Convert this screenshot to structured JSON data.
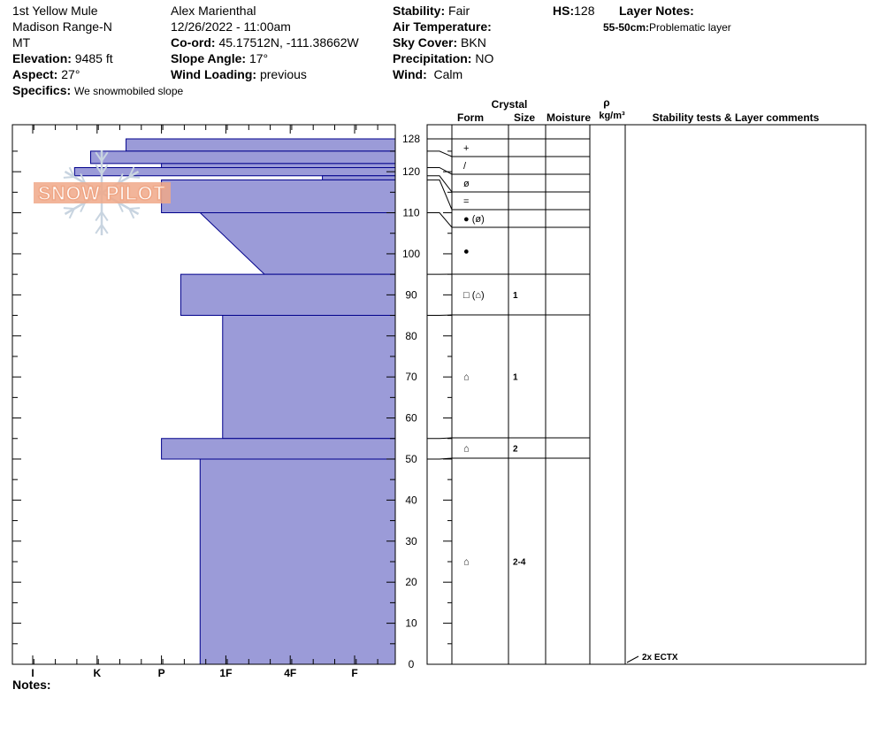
{
  "header": {
    "col1": [
      "1st Yellow Mule",
      "Madison Range-N",
      "MT"
    ],
    "elevation_label": "Elevation:",
    "elevation_value": "9485 ft",
    "aspect_label": "Aspect:",
    "aspect_value": "27°",
    "specifics_label": "Specifics:",
    "specifics_value": "We snowmobiled slope",
    "observer": "Alex Marienthal",
    "datetime": "12/26/2022 - 11:00am",
    "coord_label": "Co-ord:",
    "coord_value": "45.17512N, -111.38662W",
    "slope_label": "Slope Angle:",
    "slope_value": "17°",
    "wind_loading_label": "Wind Loading:",
    "wind_loading_value": "previous",
    "stability_label": "Stability:",
    "stability_value": "Fair",
    "air_temp_label": "Air Temperature:",
    "air_temp_value": "",
    "sky_label": "Sky Cover:",
    "sky_value": "BKN",
    "precip_label": "Precipitation:",
    "precip_value": "NO",
    "wind_label": "Wind:",
    "wind_value": "Calm",
    "hs_label": "HS:",
    "hs_value": "128",
    "layer_notes_label": "Layer Notes:",
    "layer_note_range": "55-50cm:",
    "layer_note_text": "Problematic layer"
  },
  "logo_text": "SNOW PILOT",
  "notes_label": "Notes:",
  "colors": {
    "layer_fill": "#9b9bd8",
    "layer_stroke": "#00008b",
    "logo": "#f0a888",
    "logo_flake": "#c8d4e0"
  },
  "table_headers": {
    "crystal": "Crystal",
    "form": "Form",
    "size": "Size",
    "moisture": "Moisture",
    "rho": "ρ",
    "density_unit": "kg/m³",
    "comments": "Stability tests & Layer comments"
  },
  "chart_data": {
    "type": "snow_profile",
    "hardness_axis": {
      "ticks": [
        "I",
        "K",
        "P",
        "1F",
        "4F",
        "F"
      ]
    },
    "height_axis": {
      "min": 0,
      "max": 128,
      "ticks": [
        0,
        10,
        20,
        30,
        40,
        50,
        60,
        70,
        80,
        90,
        100,
        110,
        120,
        128
      ]
    },
    "hardness_profile": [
      {
        "bottom": 125,
        "top": 128,
        "hardness_pos": 1.45
      },
      {
        "bottom": 122,
        "top": 125,
        "hardness_pos": 0.9
      },
      {
        "bottom": 121,
        "top": 122,
        "hardness_pos": 2.0
      },
      {
        "bottom": 119,
        "top": 121,
        "hardness_pos": 0.65
      },
      {
        "bottom": 118,
        "top": 119,
        "hardness_pos": 4.5
      },
      {
        "bottom": 110,
        "top": 118,
        "hardness_pos": 2.0
      },
      {
        "bottom": 95,
        "top": 110,
        "hardness_pos_bottom": 3.6,
        "hardness_pos_top": 2.6
      },
      {
        "bottom": 85,
        "top": 95,
        "hardness_pos": 2.3
      },
      {
        "bottom": 55,
        "top": 85,
        "hardness_pos": 2.95
      },
      {
        "bottom": 50,
        "top": 55,
        "hardness_pos": 2.0
      },
      {
        "bottom": 0,
        "top": 50,
        "hardness_pos": 2.6
      }
    ],
    "layers": [
      {
        "top": 128,
        "bottom": 125,
        "form": "+",
        "size": ""
      },
      {
        "top": 125,
        "bottom": 121,
        "form": "/",
        "size": ""
      },
      {
        "top": 121,
        "bottom": 119,
        "form": "ø",
        "size": ""
      },
      {
        "top": 119,
        "bottom": 118,
        "form": "=",
        "size": ""
      },
      {
        "top": 118,
        "bottom": 110,
        "form": "● (ø)",
        "size": ""
      },
      {
        "top": 110,
        "bottom": 95,
        "form": "●",
        "size": ""
      },
      {
        "top": 95,
        "bottom": 85,
        "form": "□ (⌂)",
        "size": "1"
      },
      {
        "top": 85,
        "bottom": 55,
        "form": "⌂",
        "size": "1"
      },
      {
        "top": 55,
        "bottom": 50,
        "form": "⌂",
        "size": "2"
      },
      {
        "top": 50,
        "bottom": 0,
        "form": "⌂",
        "size": "2-4"
      }
    ],
    "stability_tests": [
      {
        "height": 0,
        "label": "2x ECTX"
      }
    ]
  }
}
